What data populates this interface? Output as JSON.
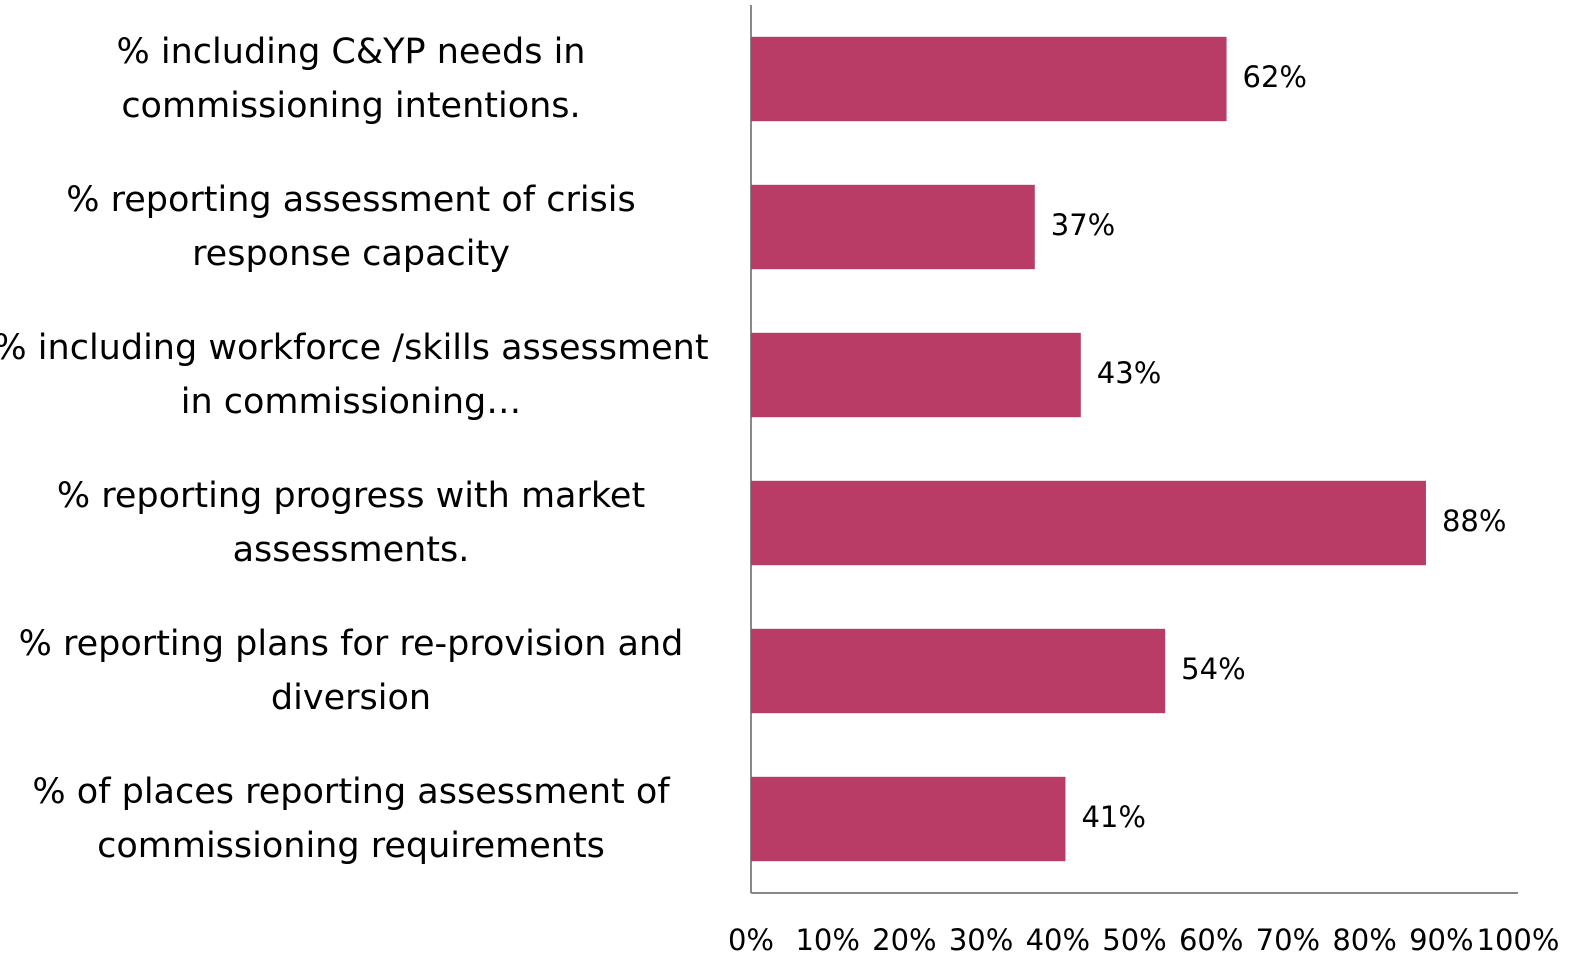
{
  "chart_data": {
    "type": "barh",
    "categories": [
      "% including C&YP needs in commissioning intentions.",
      "% reporting assessment of crisis response capacity",
      "% including workforce /skills assessment in commissioning…",
      "% reporting progress with market assessments.",
      "% reporting plans for re-provision and diversion",
      "% of places reporting assessment of commissioning requirements"
    ],
    "values": [
      62,
      37,
      43,
      88,
      54,
      41
    ],
    "value_labels": [
      "62%",
      "37%",
      "43%",
      "88%",
      "54%",
      "41%"
    ],
    "color": "#b83c66",
    "xlim": [
      0,
      100
    ],
    "xticks": [
      {
        "value": 0,
        "label": "0%"
      },
      {
        "value": 10,
        "label": "10%"
      },
      {
        "value": 20,
        "label": "20%"
      },
      {
        "value": 30,
        "label": "30%"
      },
      {
        "value": 40,
        "label": "40%"
      },
      {
        "value": 50,
        "label": "50%"
      },
      {
        "value": 60,
        "label": "60%"
      },
      {
        "value": 70,
        "label": "70%"
      },
      {
        "value": 80,
        "label": "80%"
      },
      {
        "value": 90,
        "label": "90%"
      },
      {
        "value": 100,
        "label": "100%"
      }
    ],
    "grid": false
  }
}
